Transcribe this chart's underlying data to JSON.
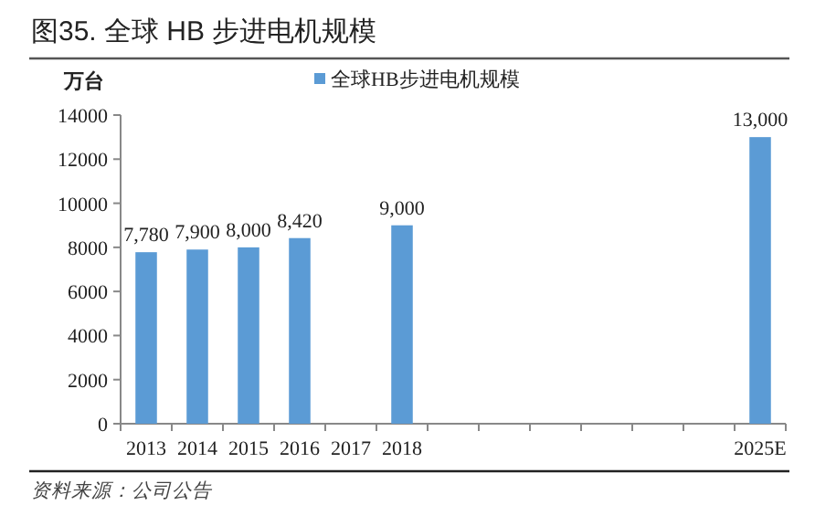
{
  "chart_data": {
    "type": "bar",
    "title": "图35. 全球 HB 步进电机规模",
    "ylabel": "万台",
    "categories": [
      "2013",
      "2014",
      "2015",
      "2016",
      "2017",
      "2018",
      null,
      null,
      null,
      null,
      null,
      null,
      "2025E"
    ],
    "series": [
      {
        "name": "全球HB步进电机规模",
        "color": "#5b9bd5",
        "values": [
          7780,
          7900,
          8000,
          8420,
          null,
          9000,
          null,
          null,
          null,
          null,
          null,
          null,
          13000
        ],
        "value_labels": [
          "7,780",
          "7,900",
          "8,000",
          "8,420",
          null,
          "9,000",
          null,
          null,
          null,
          null,
          null,
          null,
          "13,000"
        ]
      }
    ],
    "ylim": [
      0,
      14000
    ],
    "yticks": [
      0,
      2000,
      4000,
      6000,
      8000,
      10000,
      12000,
      14000
    ],
    "grid": false,
    "legend": "top",
    "annotations": [
      "资料来源：公司公告"
    ]
  }
}
